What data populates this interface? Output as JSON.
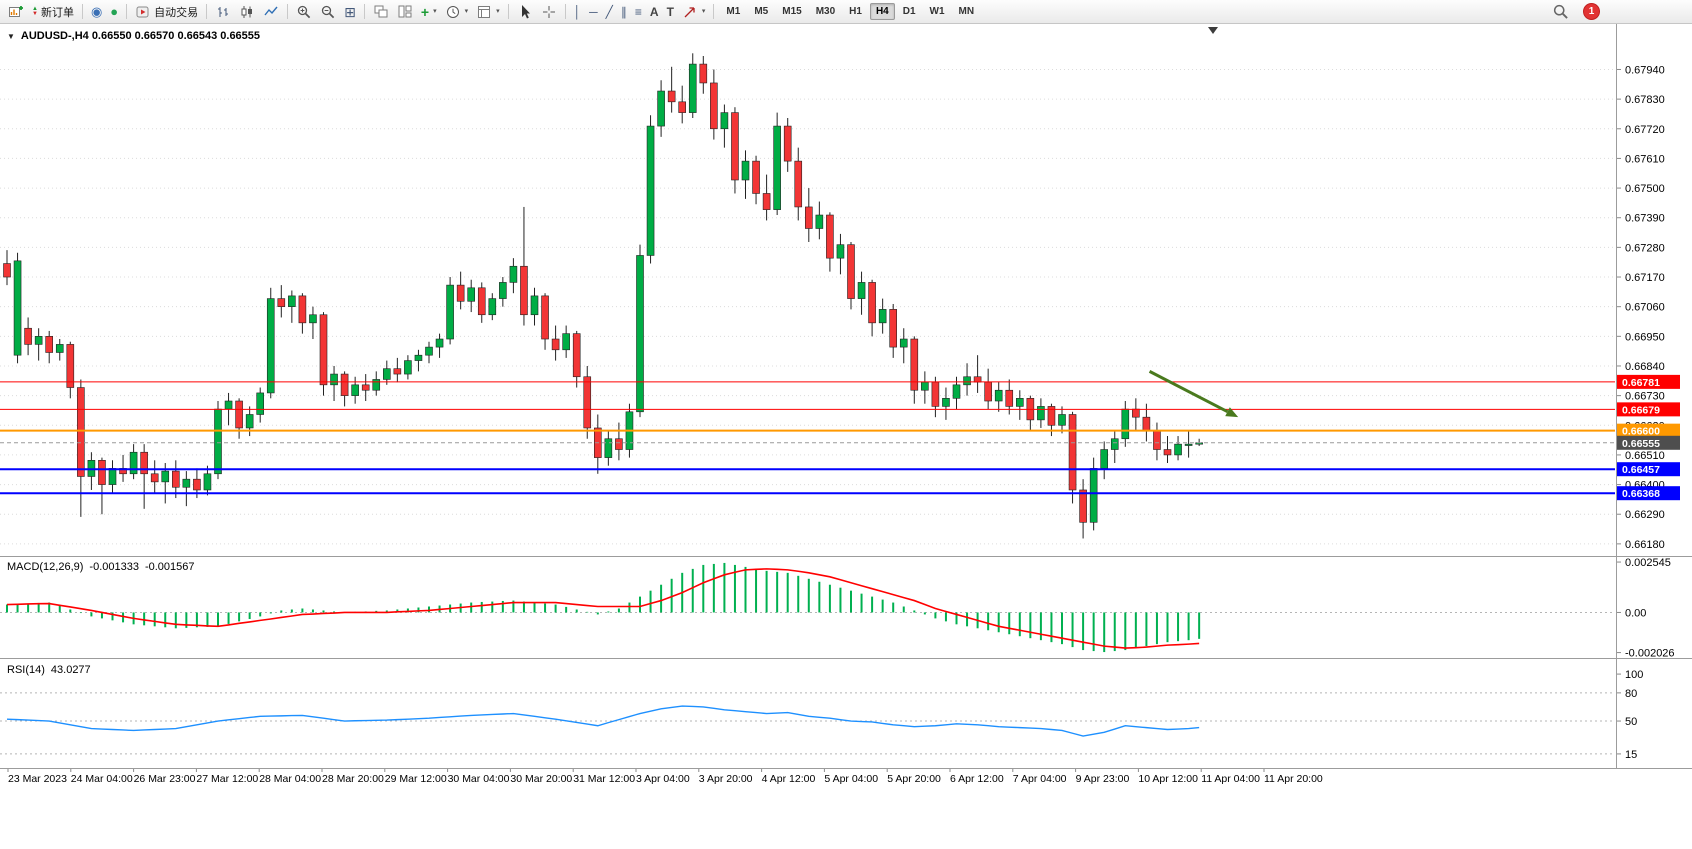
{
  "app": {
    "toolbar": {
      "new_order_label": "新订单",
      "autotrading_label": "自动交易",
      "timeframes": [
        "M1",
        "M5",
        "M15",
        "M30",
        "H1",
        "H4",
        "D1",
        "W1",
        "MN"
      ],
      "active_timeframe": "H4",
      "notification_count": "1"
    },
    "chart": {
      "title": "AUDUSD-,H4 0.66550 0.66570 0.66543 0.66555"
    }
  },
  "icons": {
    "collapse_triangle": "▼",
    "dropdown_caret": "▾",
    "up_triangle": "▲",
    "down_triangle": "▼",
    "community": "◉",
    "market": "●",
    "tile_windows": "⊞",
    "new_chart_plus": "+",
    "vertical_line": "│",
    "horizontal_line": "─",
    "trend_line": "╱",
    "channel": "∥",
    "fibonacci": "≡",
    "text": "A",
    "text_label": "T"
  },
  "chart_data": {
    "type": "candlestick",
    "symbol": "AUDUSD-",
    "timeframe": "H4",
    "y_range": [
      0.66135,
      0.68105
    ],
    "price_scale": [
      "0.67940",
      "0.67830",
      "0.67720",
      "0.67610",
      "0.67500",
      "0.67390",
      "0.67280",
      "0.67170",
      "0.67060",
      "0.66950",
      "0.66840",
      "0.66730",
      "0.66620",
      "0.66510",
      "0.66400",
      "0.66290",
      "0.66180"
    ],
    "time_labels": [
      "23 Mar 2023",
      "24 Mar 04:00",
      "26 Mar 23:00",
      "27 Mar 12:00",
      "28 Mar 04:00",
      "28 Mar 20:00",
      "29 Mar 12:00",
      "30 Mar 04:00",
      "30 Mar 20:00",
      "31 Mar 12:00",
      "3 Apr 04:00",
      "3 Apr 20:00",
      "4 Apr 12:00",
      "5 Apr 04:00",
      "5 Apr 20:00",
      "6 Apr 12:00",
      "7 Apr 04:00",
      "9 Apr 23:00",
      "10 Apr 12:00",
      "11 Apr 04:00",
      "11 Apr 20:00"
    ],
    "colors": {
      "up": "#00ad45",
      "down": "#f23535",
      "wick": "#222222",
      "grid": "#dcdcdc"
    },
    "candles": [
      [
        0.6722,
        0.6727,
        0.6714,
        0.6717
      ],
      [
        0.6688,
        0.6726,
        0.6685,
        0.6723
      ],
      [
        0.6698,
        0.6702,
        0.6688,
        0.6692
      ],
      [
        0.6692,
        0.6698,
        0.6686,
        0.6695
      ],
      [
        0.6695,
        0.6697,
        0.6685,
        0.6689
      ],
      [
        0.6689,
        0.6694,
        0.6686,
        0.6692
      ],
      [
        0.6692,
        0.6693,
        0.6672,
        0.6676
      ],
      [
        0.6676,
        0.6679,
        0.6628,
        0.6643
      ],
      [
        0.6643,
        0.6652,
        0.6638,
        0.6649
      ],
      [
        0.6649,
        0.665,
        0.6629,
        0.664
      ],
      [
        0.664,
        0.6649,
        0.6637,
        0.6646
      ],
      [
        0.6646,
        0.6651,
        0.6641,
        0.6644
      ],
      [
        0.6644,
        0.6655,
        0.6642,
        0.6652
      ],
      [
        0.6652,
        0.6655,
        0.6631,
        0.6644
      ],
      [
        0.6644,
        0.6649,
        0.6637,
        0.6641
      ],
      [
        0.6641,
        0.6648,
        0.6633,
        0.6645
      ],
      [
        0.6645,
        0.6649,
        0.6635,
        0.6639
      ],
      [
        0.6639,
        0.6645,
        0.6632,
        0.6642
      ],
      [
        0.6642,
        0.6646,
        0.6635,
        0.6638
      ],
      [
        0.6638,
        0.6647,
        0.6636,
        0.6644
      ],
      [
        0.6644,
        0.6671,
        0.6642,
        0.6668
      ],
      [
        0.6668,
        0.6674,
        0.6662,
        0.6671
      ],
      [
        0.6671,
        0.6672,
        0.6657,
        0.6661
      ],
      [
        0.6661,
        0.6669,
        0.6658,
        0.6666
      ],
      [
        0.6666,
        0.6676,
        0.6663,
        0.6674
      ],
      [
        0.6674,
        0.6713,
        0.6672,
        0.6709
      ],
      [
        0.6709,
        0.6714,
        0.6702,
        0.6706
      ],
      [
        0.6706,
        0.6712,
        0.67,
        0.671
      ],
      [
        0.671,
        0.6711,
        0.6696,
        0.67
      ],
      [
        0.67,
        0.6706,
        0.6694,
        0.6703
      ],
      [
        0.6703,
        0.6704,
        0.6673,
        0.6677
      ],
      [
        0.6677,
        0.6684,
        0.6671,
        0.6681
      ],
      [
        0.6681,
        0.6682,
        0.6669,
        0.6673
      ],
      [
        0.6673,
        0.668,
        0.667,
        0.6677
      ],
      [
        0.6677,
        0.6681,
        0.6671,
        0.6675
      ],
      [
        0.6675,
        0.6682,
        0.6673,
        0.6679
      ],
      [
        0.6679,
        0.6686,
        0.6677,
        0.6683
      ],
      [
        0.6683,
        0.6687,
        0.6678,
        0.6681
      ],
      [
        0.6681,
        0.6688,
        0.6679,
        0.6686
      ],
      [
        0.6686,
        0.669,
        0.6682,
        0.6688
      ],
      [
        0.6688,
        0.6693,
        0.6685,
        0.6691
      ],
      [
        0.6691,
        0.6696,
        0.6687,
        0.6694
      ],
      [
        0.6694,
        0.6717,
        0.6692,
        0.6714
      ],
      [
        0.6714,
        0.6719,
        0.6705,
        0.6708
      ],
      [
        0.6708,
        0.6716,
        0.6704,
        0.6713
      ],
      [
        0.6713,
        0.6715,
        0.67,
        0.6703
      ],
      [
        0.6703,
        0.6711,
        0.6701,
        0.6709
      ],
      [
        0.6709,
        0.6717,
        0.6706,
        0.6715
      ],
      [
        0.6715,
        0.6724,
        0.6711,
        0.6721
      ],
      [
        0.6721,
        0.6743,
        0.6699,
        0.6703
      ],
      [
        0.6703,
        0.6713,
        0.6699,
        0.671
      ],
      [
        0.671,
        0.6711,
        0.669,
        0.6694
      ],
      [
        0.6694,
        0.6699,
        0.6686,
        0.669
      ],
      [
        0.669,
        0.6699,
        0.6687,
        0.6696
      ],
      [
        0.6696,
        0.6697,
        0.6676,
        0.668
      ],
      [
        0.668,
        0.6684,
        0.6657,
        0.6661
      ],
      [
        0.6661,
        0.6666,
        0.6644,
        0.665
      ],
      [
        0.665,
        0.666,
        0.6647,
        0.6657
      ],
      [
        0.6657,
        0.6663,
        0.6649,
        0.6653
      ],
      [
        0.6653,
        0.667,
        0.665,
        0.6667
      ],
      [
        0.6667,
        0.6729,
        0.6665,
        0.6725
      ],
      [
        0.6725,
        0.6777,
        0.6722,
        0.6773
      ],
      [
        0.6773,
        0.679,
        0.6769,
        0.6786
      ],
      [
        0.6786,
        0.6795,
        0.6778,
        0.6782
      ],
      [
        0.6782,
        0.6788,
        0.6774,
        0.6778
      ],
      [
        0.6778,
        0.68,
        0.6776,
        0.6796
      ],
      [
        0.6796,
        0.6799,
        0.6785,
        0.6789
      ],
      [
        0.6789,
        0.6794,
        0.6768,
        0.6772
      ],
      [
        0.6772,
        0.6781,
        0.6765,
        0.6778
      ],
      [
        0.6778,
        0.678,
        0.6748,
        0.6753
      ],
      [
        0.6753,
        0.6764,
        0.6746,
        0.676
      ],
      [
        0.676,
        0.6762,
        0.6744,
        0.6748
      ],
      [
        0.6748,
        0.6755,
        0.6738,
        0.6742
      ],
      [
        0.6742,
        0.6778,
        0.674,
        0.6773
      ],
      [
        0.6773,
        0.6776,
        0.6756,
        0.676
      ],
      [
        0.676,
        0.6765,
        0.6738,
        0.6743
      ],
      [
        0.6743,
        0.675,
        0.673,
        0.6735
      ],
      [
        0.6735,
        0.6745,
        0.6731,
        0.674
      ],
      [
        0.674,
        0.6741,
        0.6719,
        0.6724
      ],
      [
        0.6724,
        0.6733,
        0.6718,
        0.6729
      ],
      [
        0.6729,
        0.673,
        0.6705,
        0.6709
      ],
      [
        0.6709,
        0.6719,
        0.6703,
        0.6715
      ],
      [
        0.6715,
        0.6716,
        0.6695,
        0.67
      ],
      [
        0.67,
        0.6709,
        0.6696,
        0.6705
      ],
      [
        0.6705,
        0.6707,
        0.6687,
        0.6691
      ],
      [
        0.6691,
        0.6698,
        0.6685,
        0.6694
      ],
      [
        0.6694,
        0.6695,
        0.667,
        0.6675
      ],
      [
        0.6675,
        0.6682,
        0.667,
        0.6678
      ],
      [
        0.6678,
        0.668,
        0.6665,
        0.6669
      ],
      [
        0.6669,
        0.6676,
        0.6664,
        0.6672
      ],
      [
        0.6672,
        0.668,
        0.6668,
        0.6677
      ],
      [
        0.6677,
        0.6685,
        0.6673,
        0.668
      ],
      [
        0.668,
        0.6688,
        0.6674,
        0.6678
      ],
      [
        0.6678,
        0.6683,
        0.6668,
        0.6671
      ],
      [
        0.6671,
        0.6678,
        0.6667,
        0.6675
      ],
      [
        0.6675,
        0.6679,
        0.6666,
        0.6669
      ],
      [
        0.6669,
        0.6675,
        0.6664,
        0.6672
      ],
      [
        0.6672,
        0.6673,
        0.666,
        0.6664
      ],
      [
        0.6664,
        0.6672,
        0.6661,
        0.6669
      ],
      [
        0.6669,
        0.667,
        0.6658,
        0.6662
      ],
      [
        0.6662,
        0.6669,
        0.6659,
        0.6666
      ],
      [
        0.6666,
        0.6667,
        0.6633,
        0.6638
      ],
      [
        0.6638,
        0.6642,
        0.662,
        0.6626
      ],
      [
        0.6626,
        0.665,
        0.6623,
        0.6646
      ],
      [
        0.6646,
        0.6656,
        0.6642,
        0.6653
      ],
      [
        0.6653,
        0.666,
        0.6648,
        0.6657
      ],
      [
        0.6657,
        0.6671,
        0.6654,
        0.6668
      ],
      [
        0.6668,
        0.6672,
        0.666,
        0.6665
      ],
      [
        0.6665,
        0.667,
        0.6656,
        0.666
      ],
      [
        0.666,
        0.6663,
        0.6649,
        0.6653
      ],
      [
        0.6653,
        0.6658,
        0.6648,
        0.6651
      ],
      [
        0.6651,
        0.6658,
        0.6649,
        0.6655
      ],
      [
        0.6655,
        0.666,
        0.665,
        0.6655
      ],
      [
        0.6655,
        0.6657,
        0.66543,
        0.66555
      ]
    ],
    "hlines": [
      {
        "price": 0.66781,
        "color": "#ff0000",
        "width": 1
      },
      {
        "price": 0.66679,
        "color": "#ff0000",
        "width": 1
      },
      {
        "price": 0.666,
        "color": "#ff9900",
        "width": 2
      },
      {
        "price": 0.66457,
        "color": "#0000ff",
        "width": 2
      },
      {
        "price": 0.66368,
        "color": "#0000ff",
        "width": 2
      }
    ],
    "bid": {
      "price": 0.66555,
      "tag_color": "#4e4e4e",
      "line_color": "#9a9a9a"
    },
    "arrow": {
      "from_index": 108.3,
      "from_price": 0.6682,
      "to_index": 116.7,
      "to_price": 0.6665,
      "color": "#4a7a1e"
    },
    "indicators": {
      "macd": {
        "label": "MACD(12,26,9)",
        "value": "-0.001333",
        "signal_value": "-0.001567",
        "scale_max": "0.002545",
        "scale_zero": "0.00",
        "scale_min": "-0.002026",
        "histogram_color": "#00b050",
        "signal_color": "#ff0000",
        "y_range": [
          -0.0023,
          0.0028
        ],
        "histogram_1e4": [
          4,
          4.3,
          4.5,
          4.8,
          5,
          3.3,
          1.5,
          -0.3,
          -2,
          -3,
          -4,
          -5,
          -6,
          -6.5,
          -7,
          -7.5,
          -8,
          -7.8,
          -7.5,
          -7.3,
          -7,
          -5.8,
          -4.5,
          -3.3,
          -2,
          -0.5,
          1,
          1.5,
          2,
          1.5,
          1,
          0.5,
          0,
          0.3,
          0.5,
          0.8,
          1,
          1.5,
          2,
          2.5,
          3,
          3.5,
          4,
          4.5,
          5,
          5.3,
          5.5,
          5.8,
          6,
          5.5,
          5,
          4.5,
          4,
          2.8,
          1.5,
          0.3,
          -1,
          0.5,
          2,
          5,
          8,
          11,
          14,
          17,
          20,
          22,
          24,
          24.5,
          25,
          24,
          23,
          22,
          21,
          20.5,
          20,
          18.5,
          17,
          15.5,
          14,
          12.5,
          11,
          9.5,
          8,
          6.5,
          5,
          3,
          1,
          -1,
          -3,
          -4.5,
          -6,
          -7,
          -8,
          -9,
          -10,
          -11,
          -12,
          -13,
          -14,
          -15,
          -16,
          -17.5,
          -19,
          -19.5,
          -20,
          -19.5,
          -19,
          -18,
          -17,
          -16,
          -15,
          -14.5,
          -14,
          -13.33
        ],
        "signal_1e4": [
          4,
          4.1,
          4.3,
          4.4,
          4.5,
          3.6,
          2.8,
          1.9,
          1,
          0,
          -1,
          -2,
          -3,
          -3.8,
          -4.5,
          -5.3,
          -6,
          -6.3,
          -6.5,
          -6.8,
          -7,
          -6.3,
          -5.5,
          -4.8,
          -4,
          -3.3,
          -2.5,
          -1.8,
          -1,
          -0.8,
          -0.5,
          -0.3,
          0,
          0,
          0,
          0,
          0,
          0.3,
          0.5,
          0.8,
          1,
          1.5,
          2,
          2.5,
          3,
          3.5,
          4,
          4.5,
          5,
          5,
          5,
          5,
          5,
          4.5,
          4,
          3.5,
          3,
          3,
          3,
          3,
          3,
          4.5,
          6,
          8,
          10,
          12.5,
          15,
          17,
          19,
          20.3,
          21.5,
          21.8,
          22,
          21.8,
          21.5,
          20.8,
          20,
          19,
          18,
          16.5,
          15,
          13.5,
          12,
          10.5,
          9,
          7.5,
          6,
          4,
          2,
          0.5,
          -1,
          -2.5,
          -4,
          -5.5,
          -7,
          -8,
          -9,
          -10,
          -11,
          -12,
          -13,
          -14,
          -15,
          -16,
          -17,
          -17.5,
          -18,
          -17.8,
          -17.5,
          -17,
          -16.5,
          -16.3,
          -16,
          -15.67
        ]
      },
      "rsi": {
        "label": "RSI(14)",
        "value": "43.0277",
        "levels": [
          "100",
          "80",
          "50",
          "15"
        ],
        "line_color": "#1e90ff",
        "y_range": [
          0,
          115
        ],
        "values": [
          52,
          51.5,
          51,
          50.5,
          50,
          48,
          46,
          44,
          42,
          41.5,
          41,
          40.5,
          40,
          40.5,
          41,
          41.5,
          42,
          44,
          46,
          48,
          50,
          51.3,
          52.5,
          53.8,
          55,
          55.3,
          55.5,
          55.8,
          56,
          54.5,
          53,
          51.5,
          50,
          50.3,
          50.5,
          50.8,
          51,
          51.5,
          52,
          52.5,
          53,
          53.8,
          54.5,
          55.3,
          56,
          56.5,
          57,
          57.5,
          58,
          56.5,
          55,
          53.5,
          52,
          50.3,
          48.5,
          46.8,
          45,
          48.3,
          51.5,
          54.8,
          58,
          60.5,
          63,
          64.5,
          66,
          65.5,
          65,
          63.5,
          62,
          61,
          60,
          59,
          58,
          58.5,
          59,
          57,
          55,
          54,
          53,
          51.5,
          50,
          49.5,
          49,
          47.5,
          46,
          45,
          44,
          44.5,
          45,
          46,
          47,
          46.5,
          46,
          45,
          44,
          43.5,
          43,
          42.5,
          42,
          41,
          40,
          37,
          34,
          36,
          38,
          41.5,
          45,
          44,
          43,
          42,
          41,
          41.5,
          42,
          43.03
        ]
      }
    }
  }
}
